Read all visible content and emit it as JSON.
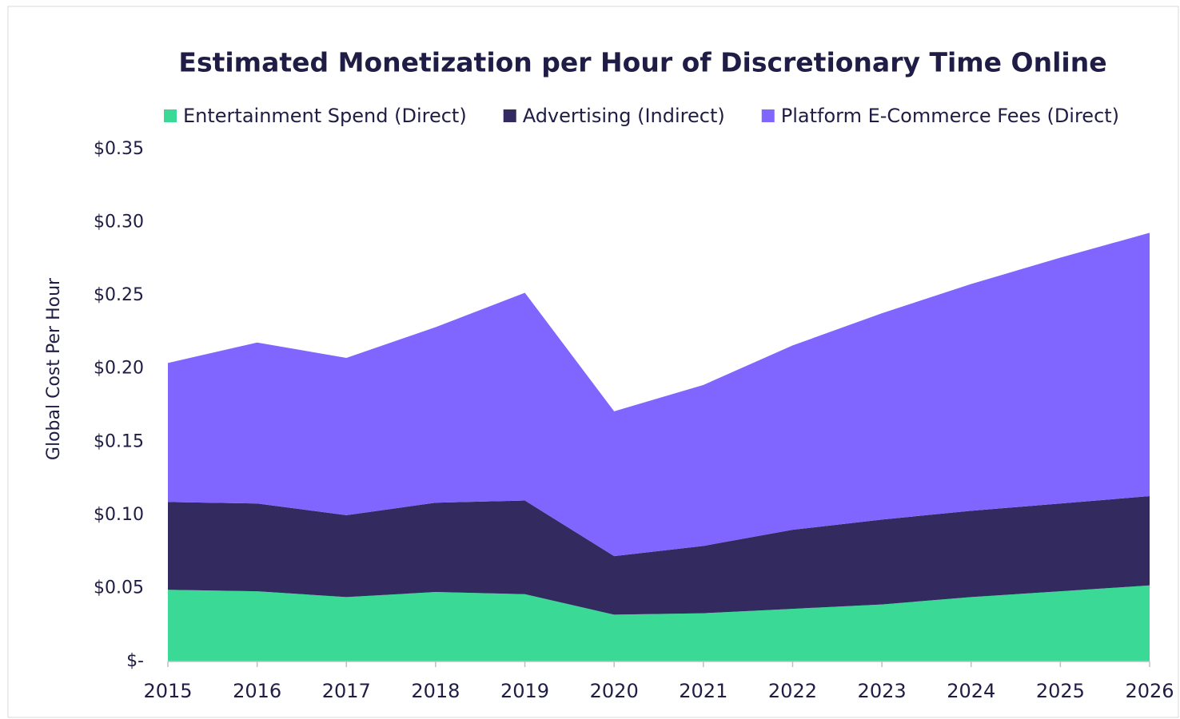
{
  "chart_data": {
    "type": "stacked_area",
    "title": "Estimated Monetization per Hour of Discretionary Time Online",
    "ylabel": "Global Cost Per Hour",
    "categories": [
      "2015",
      "2016",
      "2017",
      "2018",
      "2019",
      "2020",
      "2021",
      "2022",
      "2023",
      "2024",
      "2025",
      "2026"
    ],
    "series": [
      {
        "name": "Entertainment Spend (Direct)",
        "color": "#3ad996",
        "values": [
          0.049,
          0.048,
          0.044,
          0.0475,
          0.046,
          0.032,
          0.033,
          0.036,
          0.039,
          0.044,
          0.048,
          0.052
        ]
      },
      {
        "name": "Advertising (Indirect)",
        "color": "#332a60",
        "values": [
          0.06,
          0.06,
          0.056,
          0.061,
          0.064,
          0.04,
          0.046,
          0.054,
          0.058,
          0.059,
          0.06,
          0.061
        ]
      },
      {
        "name": "Platform E-Commerce Fees (Direct)",
        "color": "#8066ff",
        "values": [
          0.095,
          0.11,
          0.1075,
          0.12,
          0.142,
          0.099,
          0.11,
          0.126,
          0.141,
          0.155,
          0.168,
          0.18
        ]
      }
    ],
    "ylim": [
      0,
      0.35
    ],
    "yticks": [
      {
        "value": 0,
        "label": "$-"
      },
      {
        "value": 0.05,
        "label": "$0.05"
      },
      {
        "value": 0.1,
        "label": "$0.10"
      },
      {
        "value": 0.15,
        "label": "$0.15"
      },
      {
        "value": 0.2,
        "label": "$0.20"
      },
      {
        "value": 0.25,
        "label": "$0.25"
      },
      {
        "value": 0.3,
        "label": "$0.30"
      },
      {
        "value": 0.35,
        "label": "$0.35"
      }
    ],
    "legend": "top"
  }
}
